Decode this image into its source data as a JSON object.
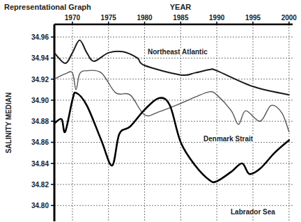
{
  "chart_data": {
    "type": "line",
    "title": "Representational Graph",
    "x_label": "YEAR",
    "y_label": "SALINITY MEDIAN",
    "xlim": [
      1967.5,
      2000.5
    ],
    "xticks": [
      1970,
      1975,
      1980,
      1985,
      1990,
      1995,
      2000
    ],
    "ylim": [
      34.785,
      34.972
    ],
    "yticks": [
      {
        "value": 34.8,
        "label": "34.80"
      },
      {
        "value": 34.82,
        "label": "34.82"
      },
      {
        "value": 34.84,
        "label": "34.84"
      },
      {
        "value": 34.86,
        "label": "34.86"
      },
      {
        "value": 34.88,
        "label": "34.88"
      },
      {
        "value": 34.9,
        "label": "34.90"
      },
      {
        "value": 34.92,
        "label": "34.92"
      },
      {
        "value": 34.94,
        "label": "34.94"
      },
      {
        "value": 34.96,
        "label": "34.96"
      }
    ],
    "grid": true,
    "series": [
      {
        "name": "Northeast Atlantic",
        "color": "#1a1a1a",
        "x": [
          1967.5,
          1969,
          1970,
          1971,
          1972,
          1973,
          1975,
          1977,
          1979,
          1980,
          1985,
          1987,
          1989,
          1990,
          1995,
          2000
        ],
        "values": [
          34.945,
          34.935,
          34.945,
          34.957,
          34.945,
          34.937,
          34.945,
          34.946,
          34.94,
          34.933,
          34.924,
          34.926,
          34.929,
          34.928,
          34.913,
          34.905
        ]
      },
      {
        "name": "Denmark Strait",
        "color": "#555555",
        "x": [
          1967.5,
          1969,
          1970,
          1970.5,
          1971,
          1972,
          1974,
          1976,
          1978,
          1980,
          1982,
          1985,
          1987,
          1989,
          1990,
          1992,
          1993,
          1994,
          1996,
          1997.5,
          1999,
          2000
        ],
        "values": [
          34.92,
          34.925,
          34.926,
          34.91,
          34.925,
          34.928,
          34.926,
          34.907,
          34.905,
          34.886,
          34.889,
          34.897,
          34.903,
          34.908,
          34.905,
          34.89,
          34.877,
          34.89,
          34.88,
          34.895,
          34.888,
          34.87
        ]
      },
      {
        "name": "Labrador Sea",
        "color": "#000000",
        "x": [
          1967.5,
          1968.5,
          1969,
          1970,
          1970.5,
          1972,
          1974,
          1975.5,
          1976.5,
          1978,
          1980,
          1982,
          1983.5,
          1985,
          1987,
          1989,
          1990,
          1992,
          1993.5,
          1994.5,
          1996,
          1998,
          2000
        ],
        "values": [
          34.878,
          34.882,
          34.87,
          34.9,
          34.907,
          34.895,
          34.862,
          34.838,
          34.868,
          34.875,
          34.891,
          34.902,
          34.895,
          34.86,
          34.838,
          34.824,
          34.823,
          34.832,
          34.84,
          34.83,
          34.835,
          34.85,
          34.862
        ]
      }
    ]
  }
}
